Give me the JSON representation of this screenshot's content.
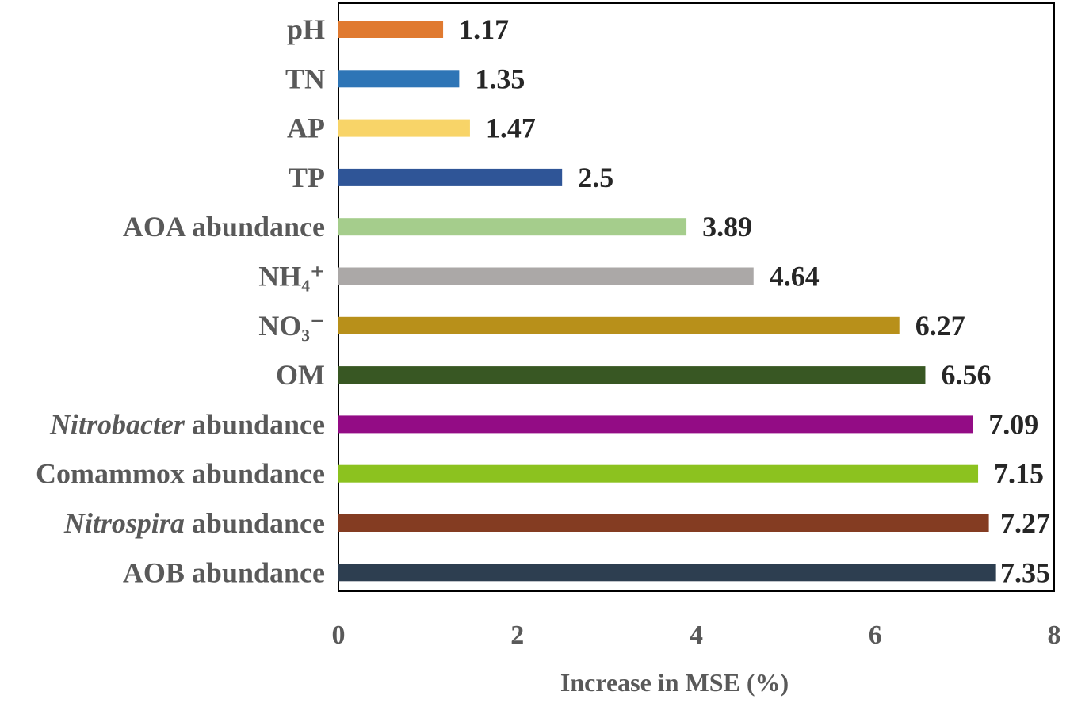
{
  "chart_data": {
    "type": "bar",
    "orientation": "horizontal",
    "title": "",
    "xlabel": "Increase in MSE (%)",
    "ylabel": "",
    "xlim": [
      0,
      8
    ],
    "xticks": [
      "0",
      "2",
      "4",
      "6",
      "8"
    ],
    "grid": false,
    "legend": "none",
    "categories": [
      {
        "label": "pH",
        "value": 1.17,
        "value_label": "1.17",
        "color": "#E07A30"
      },
      {
        "label": "TN",
        "value": 1.35,
        "value_label": "1.35",
        "color": "#2E75B6"
      },
      {
        "label": "AP",
        "value": 1.47,
        "value_label": "1.47",
        "color": "#F8D468"
      },
      {
        "label": "TP",
        "value": 2.5,
        "value_label": "2.5",
        "color": "#2F5597"
      },
      {
        "label": "AOA abundance",
        "value": 3.89,
        "value_label": "3.89",
        "color": "#A5CD8C"
      },
      {
        "label": "NH₄⁺",
        "value": 4.64,
        "value_label": "4.64",
        "color": "#ABA8A7"
      },
      {
        "label": "NO₃⁻",
        "value": 6.27,
        "value_label": "6.27",
        "color": "#B8901A"
      },
      {
        "label": "OM",
        "value": 6.56,
        "value_label": "6.56",
        "color": "#385723"
      },
      {
        "label": "Nitrobacter abundance",
        "italic_prefix": "Nitrobacter",
        "suffix": " abundance",
        "value": 7.09,
        "value_label": "7.09",
        "color": "#930C85"
      },
      {
        "label": "Comammox abundance",
        "value": 7.15,
        "value_label": "7.15",
        "color": "#8CC21F"
      },
      {
        "label": "Nitrospira abundance",
        "italic_prefix": "Nitrospira",
        "suffix": " abundance",
        "value": 7.27,
        "value_label": "7.27",
        "color": "#843C22"
      },
      {
        "label": "AOB abundance",
        "value": 7.35,
        "value_label": "7.35",
        "color": "#2D3E50"
      }
    ]
  }
}
